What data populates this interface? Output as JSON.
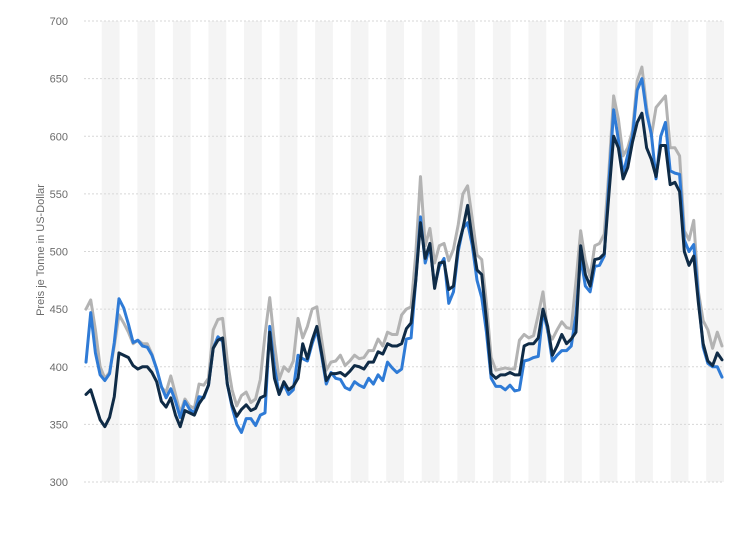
{
  "chart_data": {
    "type": "line",
    "title": "",
    "xlabel": "",
    "ylabel": "Preis je Tonne in US-Dollar",
    "ylim": [
      300,
      700
    ],
    "yticks": [
      300,
      350,
      400,
      450,
      500,
      550,
      600,
      650,
      700
    ],
    "grid": true,
    "legend": "none",
    "colors": {
      "background": "#ffffff",
      "band": "#f4f4f4",
      "grid": "#d7d7d7",
      "tick_text": "#6b6b6b"
    },
    "series": [
      {
        "color": "#b3b3b3",
        "values": [
          450,
          458,
          432,
          400,
          390,
          395,
          418,
          445,
          438,
          430,
          420,
          423,
          420,
          420,
          411,
          398,
          382,
          378,
          392,
          376,
          360,
          372,
          366,
          364,
          385,
          384,
          390,
          432,
          441,
          442,
          405,
          380,
          366,
          375,
          378,
          369,
          372,
          389,
          428,
          460,
          420,
          389,
          400,
          396,
          405,
          442,
          425,
          435,
          450,
          452,
          424,
          397,
          404,
          405,
          410,
          401,
          405,
          410,
          407,
          408,
          414,
          414,
          424,
          418,
          430,
          428,
          428,
          445,
          450,
          452,
          498,
          565,
          505,
          520,
          490,
          505,
          507,
          492,
          502,
          523,
          550,
          557,
          528,
          497,
          493,
          455,
          408,
          397,
          398,
          399,
          398,
          398,
          423,
          428,
          425,
          427,
          445,
          465,
          430,
          424,
          432,
          439,
          434,
          433,
          474,
          518,
          492,
          478,
          505,
          507,
          515,
          570,
          635,
          615,
          583,
          590,
          605,
          648,
          660,
          625,
          600,
          625,
          630,
          635,
          590,
          590,
          583,
          518,
          510,
          527,
          465,
          440,
          432,
          416,
          430,
          418
        ]
      },
      {
        "color": "#2f7bd6",
        "values": [
          404,
          447,
          412,
          393,
          388,
          394,
          421,
          459,
          451,
          437,
          421,
          423,
          418,
          417,
          410,
          398,
          383,
          373,
          381,
          370,
          356,
          370,
          363,
          360,
          374,
          373,
          384,
          416,
          426,
          422,
          385,
          365,
          350,
          343,
          355,
          355,
          349,
          358,
          360,
          435,
          400,
          376,
          385,
          376,
          380,
          410,
          407,
          405,
          420,
          432,
          410,
          385,
          395,
          390,
          389,
          382,
          380,
          387,
          384,
          382,
          390,
          385,
          393,
          388,
          404,
          399,
          395,
          398,
          424,
          425,
          475,
          530,
          490,
          505,
          470,
          487,
          494,
          455,
          465,
          500,
          520,
          525,
          505,
          475,
          460,
          430,
          390,
          383,
          383,
          380,
          384,
          379,
          380,
          405,
          406,
          408,
          409,
          448,
          432,
          405,
          410,
          414,
          414,
          418,
          445,
          495,
          470,
          465,
          487,
          488,
          496,
          560,
          623,
          597,
          567,
          584,
          600,
          640,
          650,
          620,
          602,
          563,
          600,
          612,
          570,
          568,
          567,
          510,
          500,
          506,
          460,
          417,
          403,
          400,
          400,
          391
        ]
      },
      {
        "color": "#0f2b46",
        "values": [
          376,
          380,
          367,
          354,
          348,
          356,
          374,
          412,
          410,
          408,
          401,
          398,
          400,
          400,
          395,
          387,
          370,
          365,
          373,
          358,
          348,
          362,
          360,
          358,
          368,
          374,
          384,
          416,
          423,
          425,
          385,
          367,
          357,
          363,
          367,
          362,
          364,
          373,
          375,
          430,
          390,
          376,
          387,
          380,
          383,
          390,
          420,
          407,
          423,
          435,
          412,
          388,
          394,
          394,
          395,
          392,
          396,
          401,
          400,
          398,
          404,
          404,
          413,
          411,
          420,
          418,
          418,
          420,
          433,
          438,
          475,
          525,
          494,
          507,
          468,
          490,
          491,
          467,
          470,
          504,
          520,
          540,
          510,
          484,
          480,
          440,
          394,
          390,
          393,
          393,
          395,
          393,
          393,
          418,
          420,
          420,
          425,
          450,
          435,
          410,
          418,
          428,
          420,
          424,
          430,
          505,
          480,
          470,
          493,
          494,
          498,
          550,
          600,
          590,
          563,
          573,
          595,
          612,
          620,
          590,
          580,
          565,
          592,
          592,
          558,
          560,
          552,
          500,
          488,
          496,
          455,
          420,
          405,
          401,
          412,
          406
        ]
      }
    ]
  }
}
